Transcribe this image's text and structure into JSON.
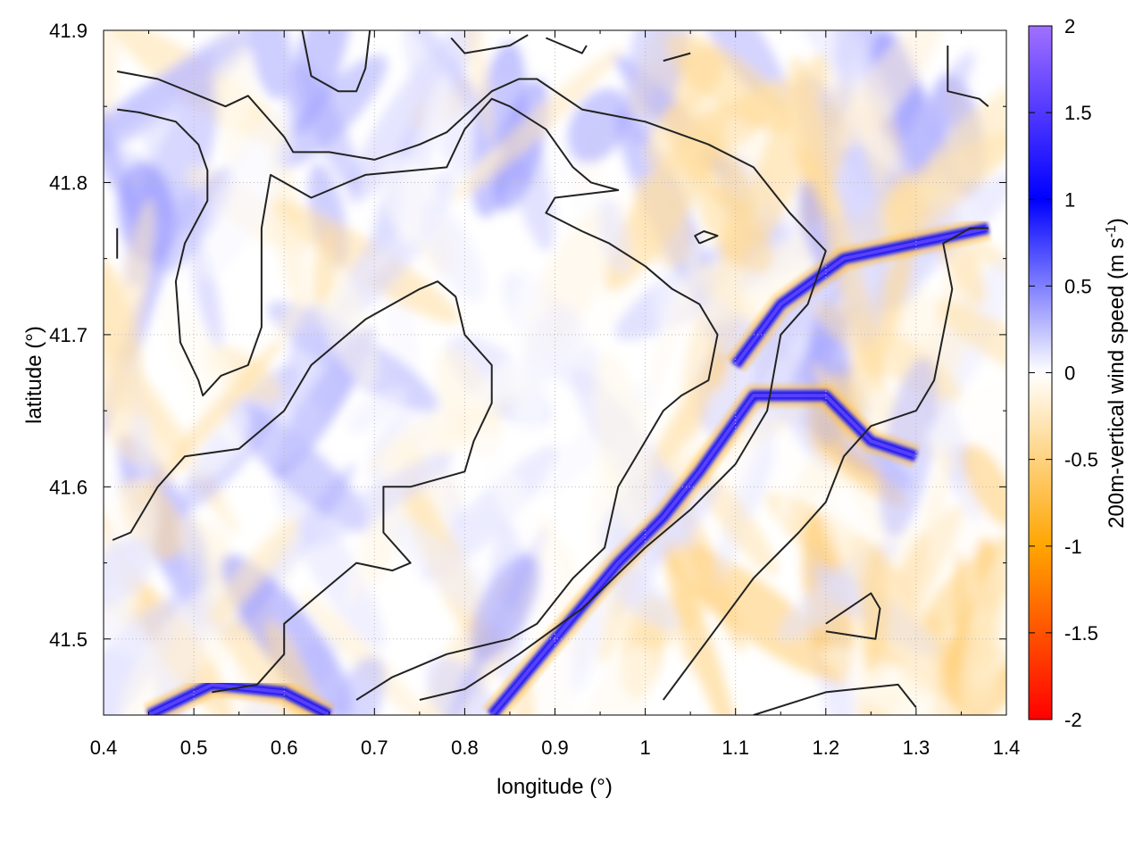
{
  "chart_data": {
    "type": "heatmap",
    "xlabel": "longitude (°)",
    "ylabel": "latitude (°)",
    "xlim": [
      0.4,
      1.4
    ],
    "ylim": [
      41.45,
      41.9
    ],
    "x_ticks": [
      "0.4",
      "0.5",
      "0.6",
      "0.7",
      "0.8",
      "0.9",
      "1",
      "1.1",
      "1.2",
      "1.3",
      "1.4"
    ],
    "y_ticks": [
      "41.5",
      "41.6",
      "41.7",
      "41.8",
      "41.9"
    ],
    "grid": true,
    "colorbar": {
      "label": "200m-vertical wind speed (m s",
      "label_superscript": "-1",
      "label_end": ")",
      "range": [
        -2,
        2
      ],
      "ticks": [
        "2",
        "1.5",
        "1",
        "0.5",
        "0",
        "-0.5",
        "-1",
        "-1.5",
        "-2"
      ],
      "stops": [
        {
          "value": -2,
          "color": "#ff0000"
        },
        {
          "value": -1,
          "color": "#ffa500"
        },
        {
          "value": 0,
          "color": "#ffffff"
        },
        {
          "value": 1,
          "color": "#0000ff"
        },
        {
          "value": 2,
          "color": "#a070ff"
        }
      ]
    },
    "features": {
      "strong_updraft_ridges": [
        [
          [
            0.83,
            41.45
          ],
          [
            0.9,
            41.5
          ],
          [
            0.97,
            41.55
          ],
          [
            1.02,
            41.58
          ],
          [
            1.06,
            41.61
          ],
          [
            1.12,
            41.66
          ],
          [
            1.2,
            41.66
          ],
          [
            1.25,
            41.63
          ],
          [
            1.3,
            41.62
          ]
        ],
        [
          [
            1.1,
            41.68
          ],
          [
            1.15,
            41.72
          ],
          [
            1.22,
            41.75
          ],
          [
            1.3,
            41.76
          ],
          [
            1.38,
            41.77
          ]
        ],
        [
          [
            0.45,
            41.45
          ],
          [
            0.52,
            41.47
          ],
          [
            0.6,
            41.465
          ],
          [
            0.65,
            41.45
          ]
        ]
      ],
      "contours": [
        [
          [
            0.415,
            41.873
          ],
          [
            0.46,
            41.868
          ],
          [
            0.535,
            41.85
          ],
          [
            0.56,
            41.857
          ],
          [
            0.6,
            41.83
          ],
          [
            0.61,
            41.82
          ],
          [
            0.65,
            41.82
          ],
          [
            0.7,
            41.815
          ],
          [
            0.75,
            41.825
          ],
          [
            0.78,
            41.833
          ],
          [
            0.83,
            41.86
          ],
          [
            0.86,
            41.868
          ],
          [
            0.88,
            41.868
          ],
          [
            0.93,
            41.848
          ],
          [
            1.0,
            41.84
          ],
          [
            1.07,
            41.825
          ],
          [
            1.12,
            41.81
          ],
          [
            1.16,
            41.78
          ],
          [
            1.2,
            41.755
          ],
          [
            1.18,
            41.72
          ],
          [
            1.15,
            41.7
          ],
          [
            1.135,
            41.65
          ],
          [
            1.1,
            41.615
          ],
          [
            1.05,
            41.585
          ],
          [
            1.0,
            41.56
          ],
          [
            0.93,
            41.52
          ],
          [
            0.86,
            41.49
          ],
          [
            0.8,
            41.467
          ],
          [
            0.75,
            41.46
          ]
        ],
        [
          [
            0.415,
            41.848
          ],
          [
            0.44,
            41.846
          ],
          [
            0.48,
            41.84
          ],
          [
            0.505,
            41.825
          ],
          [
            0.515,
            41.808
          ],
          [
            0.515,
            41.788
          ],
          [
            0.49,
            41.76
          ],
          [
            0.48,
            41.735
          ],
          [
            0.485,
            41.695
          ],
          [
            0.505,
            41.67
          ],
          [
            0.51,
            41.66
          ],
          [
            0.53,
            41.673
          ],
          [
            0.56,
            41.68
          ],
          [
            0.575,
            41.705
          ],
          [
            0.575,
            41.77
          ],
          [
            0.585,
            41.805
          ],
          [
            0.6,
            41.8
          ],
          [
            0.63,
            41.79
          ],
          [
            0.69,
            41.805
          ],
          [
            0.78,
            41.81
          ],
          [
            0.8,
            41.835
          ],
          [
            0.83,
            41.855
          ],
          [
            0.85,
            41.85
          ],
          [
            0.89,
            41.835
          ],
          [
            0.92,
            41.81
          ],
          [
            0.94,
            41.8
          ],
          [
            0.97,
            41.795
          ],
          [
            0.9,
            41.79
          ],
          [
            0.89,
            41.78
          ],
          [
            0.93,
            41.768
          ],
          [
            0.96,
            41.76
          ],
          [
            1.0,
            41.745
          ],
          [
            1.03,
            41.73
          ],
          [
            1.06,
            41.72
          ],
          [
            1.08,
            41.7
          ],
          [
            1.07,
            41.67
          ],
          [
            1.04,
            41.66
          ],
          [
            1.02,
            41.65
          ],
          [
            1.0,
            41.63
          ],
          [
            0.97,
            41.6
          ],
          [
            0.955,
            41.56
          ],
          [
            0.92,
            41.54
          ],
          [
            0.88,
            41.51
          ],
          [
            0.85,
            41.5
          ],
          [
            0.78,
            41.49
          ],
          [
            0.74,
            41.48
          ],
          [
            0.72,
            41.475
          ],
          [
            0.68,
            41.46
          ]
        ],
        [
          [
            0.41,
            41.565
          ],
          [
            0.43,
            41.57
          ],
          [
            0.46,
            41.6
          ],
          [
            0.49,
            41.62
          ],
          [
            0.55,
            41.625
          ],
          [
            0.6,
            41.65
          ],
          [
            0.63,
            41.68
          ],
          [
            0.66,
            41.695
          ],
          [
            0.69,
            41.71
          ],
          [
            0.72,
            41.72
          ],
          [
            0.75,
            41.73
          ],
          [
            0.77,
            41.735
          ],
          [
            0.79,
            41.725
          ],
          [
            0.8,
            41.7
          ],
          [
            0.83,
            41.68
          ],
          [
            0.83,
            41.655
          ],
          [
            0.81,
            41.63
          ],
          [
            0.8,
            41.61
          ],
          [
            0.74,
            41.6
          ],
          [
            0.71,
            41.6
          ],
          [
            0.71,
            41.57
          ],
          [
            0.74,
            41.55
          ],
          [
            0.72,
            41.545
          ],
          [
            0.68,
            41.55
          ],
          [
            0.64,
            41.53
          ],
          [
            0.6,
            41.51
          ],
          [
            0.6,
            41.49
          ],
          [
            0.57,
            41.47
          ],
          [
            0.52,
            41.465
          ]
        ],
        [
          [
            1.02,
            41.46
          ],
          [
            1.07,
            41.5
          ],
          [
            1.12,
            41.54
          ],
          [
            1.17,
            41.57
          ],
          [
            1.2,
            41.59
          ],
          [
            1.22,
            41.62
          ],
          [
            1.25,
            41.64
          ],
          [
            1.3,
            41.65
          ],
          [
            1.32,
            41.67
          ],
          [
            1.34,
            41.73
          ],
          [
            1.33,
            41.76
          ],
          [
            1.36,
            41.77
          ],
          [
            1.38,
            41.77
          ]
        ],
        [
          [
            1.12,
            41.45
          ],
          [
            1.2,
            41.465
          ],
          [
            1.28,
            41.47
          ],
          [
            1.3,
            41.455
          ]
        ],
        [
          [
            1.2,
            41.51
          ],
          [
            1.25,
            41.53
          ],
          [
            1.26,
            41.52
          ],
          [
            1.255,
            41.5
          ],
          [
            1.2,
            41.505
          ]
        ],
        [
          [
            1.06,
            41.76
          ],
          [
            1.08,
            41.765
          ],
          [
            1.065,
            41.768
          ],
          [
            1.055,
            41.765
          ],
          [
            1.06,
            41.76
          ]
        ],
        [
          [
            0.415,
            41.77
          ],
          [
            0.415,
            41.75
          ]
        ],
        [
          [
            1.335,
            41.89
          ],
          [
            1.335,
            41.86
          ],
          [
            1.37,
            41.855
          ],
          [
            1.38,
            41.85
          ]
        ],
        [
          [
            0.62,
            41.9
          ],
          [
            0.63,
            41.87
          ],
          [
            0.66,
            41.86
          ],
          [
            0.68,
            41.86
          ],
          [
            0.69,
            41.875
          ],
          [
            0.695,
            41.9
          ]
        ],
        [
          [
            0.785,
            41.895
          ],
          [
            0.8,
            41.885
          ],
          [
            0.85,
            41.89
          ],
          [
            0.87,
            41.897
          ]
        ],
        [
          [
            0.89,
            41.895
          ],
          [
            0.93,
            41.885
          ],
          [
            0.935,
            41.89
          ]
        ],
        [
          [
            1.02,
            41.88
          ],
          [
            1.05,
            41.885
          ]
        ]
      ]
    }
  }
}
